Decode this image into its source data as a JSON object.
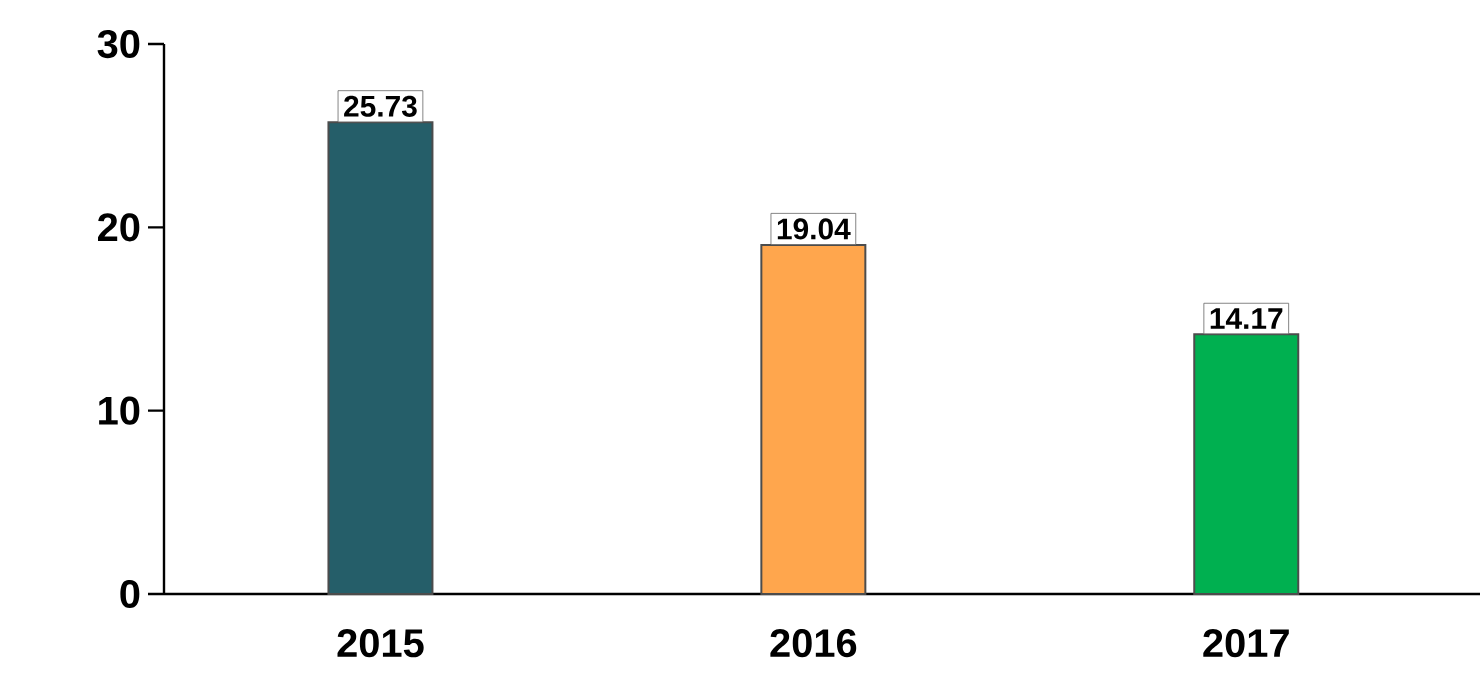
{
  "chart_data": {
    "type": "bar",
    "categories": [
      "2015",
      "2016",
      "2017"
    ],
    "values": [
      25.73,
      19.04,
      14.17
    ],
    "colors": [
      "#255e69",
      "#ffa64d",
      "#00b050"
    ],
    "ylim": [
      0,
      30
    ],
    "yticks": [
      0,
      10,
      20,
      30
    ],
    "data_labels": true
  }
}
